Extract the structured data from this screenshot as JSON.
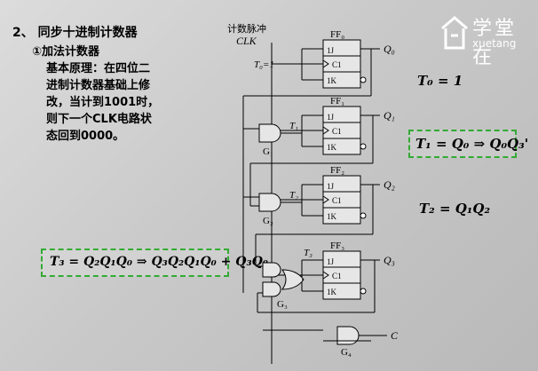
{
  "slide": {
    "heading": "2、 同步十进制计数器",
    "subheading": "①加法计数器",
    "body_lines": [
      "基本原理：在四位二",
      "进制计数器基础上修",
      "改，当计到1001时，",
      "则下一个CLK电路状",
      "态回到0000。"
    ],
    "formula_t3": "T₃ = Q₂Q₁Q₀ ⇒ Q₃Q₂Q₁Q₀ + Q₃Q₀",
    "formula_t0": "T₀ = 1",
    "formula_t1": "T₁ = Q₀ ⇒ Q₀Q₃'",
    "formula_t2": "T₂ = Q₁Q₂"
  },
  "logo": {
    "chinese": "学堂在",
    "latin": "xuetang"
  },
  "circuit": {
    "clock_label_cn": "计数脉冲",
    "clock_label": "CLK",
    "t0_input": "T₀=1",
    "flip_flops": [
      {
        "name": "FF₀",
        "input_t": "",
        "output": "Q₀"
      },
      {
        "name": "FF₁",
        "input_t": "T₁",
        "output": "Q₁"
      },
      {
        "name": "FF₂",
        "input_t": "T₂",
        "output": "Q₂"
      },
      {
        "name": "FF₃",
        "input_t": "T₃",
        "output": "Q₃"
      }
    ],
    "pin_labels": [
      "1J",
      "C1",
      "1K"
    ],
    "gates": [
      "G₁",
      "G₂",
      "G₃",
      "G₄"
    ],
    "carry_output": "C"
  },
  "colors": {
    "box_border": "#33aa33",
    "background": "#c9c9c9"
  }
}
